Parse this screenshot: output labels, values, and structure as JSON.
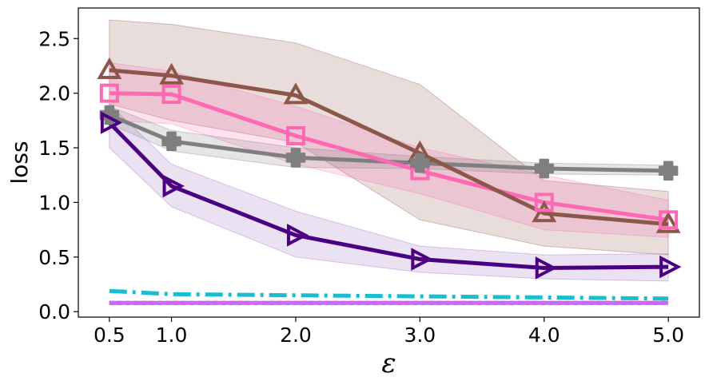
{
  "chart_data": {
    "type": "line",
    "title": "",
    "xlabel": "ε",
    "ylabel": "loss",
    "xlim": [
      0.25,
      5.25
    ],
    "ylim": [
      -0.05,
      2.78
    ],
    "x": [
      0.5,
      1.0,
      2.0,
      3.0,
      4.0,
      5.0
    ],
    "x_tick_labels": [
      "0.5",
      "1.0",
      "2.0",
      "3.0",
      "4.0",
      "5.0"
    ],
    "y_ticks": [
      0.0,
      0.5,
      1.0,
      1.5,
      2.0,
      2.5
    ],
    "y_tick_labels": [
      "0.0",
      "0.5",
      "1.0",
      "1.5",
      "2.0",
      "2.5"
    ],
    "legend": "none",
    "grid": false,
    "series": [
      {
        "name": "brown-triangle",
        "color": "#8c564b",
        "marker": "triangle-up",
        "linestyle": "solid",
        "values": [
          2.21,
          2.16,
          1.98,
          1.45,
          0.9,
          0.8
        ],
        "band_lower": [
          1.9,
          1.75,
          1.55,
          0.84,
          0.6,
          0.52
        ],
        "band_upper": [
          2.67,
          2.63,
          2.46,
          2.08,
          1.2,
          1.1
        ]
      },
      {
        "name": "pink-square",
        "color": "#ff69b4",
        "marker": "square",
        "linestyle": "solid",
        "values": [
          2.0,
          1.99,
          1.61,
          1.29,
          1.0,
          0.84
        ],
        "band_lower": [
          1.75,
          1.72,
          1.35,
          1.08,
          0.75,
          0.68
        ],
        "band_upper": [
          2.28,
          2.2,
          1.88,
          1.5,
          1.25,
          1.02
        ]
      },
      {
        "name": "gray-plus",
        "color": "#7f7f7f",
        "marker": "plus",
        "linestyle": "solid",
        "values": [
          1.8,
          1.56,
          1.41,
          1.36,
          1.31,
          1.29
        ],
        "band_lower": [
          1.72,
          1.47,
          1.32,
          1.31,
          1.26,
          1.25
        ],
        "band_upper": [
          1.88,
          1.66,
          1.5,
          1.42,
          1.36,
          1.34
        ]
      },
      {
        "name": "purple-triangle-right",
        "color": "#4b0082",
        "band_color": "#9467bd",
        "marker": "triangle-right",
        "linestyle": "solid",
        "values": [
          1.73,
          1.15,
          0.7,
          0.48,
          0.4,
          0.41
        ],
        "band_lower": [
          1.5,
          0.96,
          0.5,
          0.36,
          0.3,
          0.28
        ],
        "band_upper": [
          1.9,
          1.35,
          0.92,
          0.6,
          0.52,
          0.53
        ]
      },
      {
        "name": "cyan-dashdot",
        "color": "#17becf",
        "marker": "none",
        "linestyle": "dashdot",
        "values": [
          0.19,
          0.16,
          0.15,
          0.14,
          0.13,
          0.12
        ]
      },
      {
        "name": "violet-flat",
        "color": "#cc66ff",
        "marker": "none",
        "linestyle": "solid",
        "values": [
          0.08,
          0.08,
          0.08,
          0.08,
          0.08,
          0.08
        ]
      },
      {
        "name": "red-dotted",
        "color": "#ff0000",
        "marker": "none",
        "linestyle": "dotted",
        "values": [
          0.08,
          0.08,
          0.08,
          0.08,
          0.08,
          0.08
        ]
      }
    ]
  }
}
